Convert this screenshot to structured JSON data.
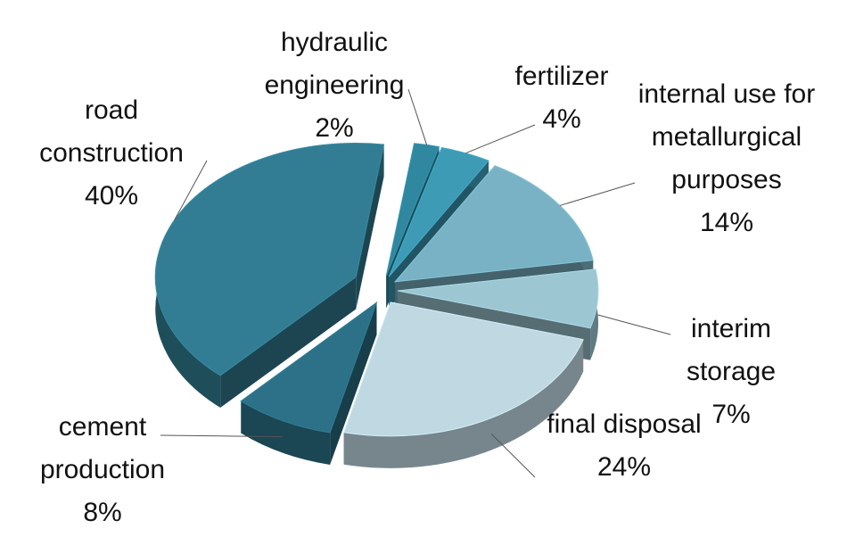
{
  "chart_data": {
    "type": "pie",
    "categories": [
      "hydraulic engineering",
      "fertilizer",
      "internal use for metallurgical purposes",
      "interim storage",
      "final disposal",
      "cement production",
      "road construction"
    ],
    "values": [
      2,
      4,
      14,
      7,
      24,
      8,
      40
    ],
    "value_labels": [
      "2%",
      "4%",
      "14%",
      "7%",
      "24%",
      "8%",
      "40%"
    ],
    "colors": [
      "#2f88a0",
      "#3d9bb6",
      "#79b2c4",
      "#9dc6d3",
      "#bfd8e1",
      "#2c7187",
      "#327d93"
    ]
  }
}
